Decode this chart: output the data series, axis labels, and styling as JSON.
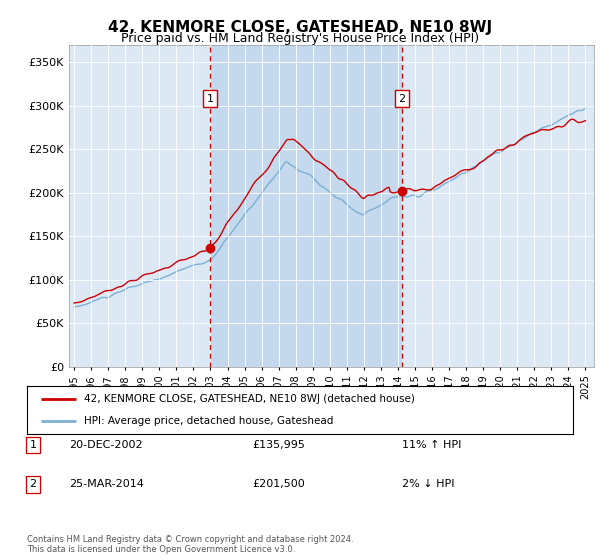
{
  "title": "42, KENMORE CLOSE, GATESHEAD, NE10 8WJ",
  "subtitle": "Price paid vs. HM Land Registry's House Price Index (HPI)",
  "bg_color": "#dce9f5",
  "highlight_color": "#c5d9ee",
  "ylabel_ticks": [
    "£0",
    "£50K",
    "£100K",
    "£150K",
    "£200K",
    "£250K",
    "£300K",
    "£350K"
  ],
  "ytick_values": [
    0,
    50000,
    100000,
    150000,
    200000,
    250000,
    300000,
    350000
  ],
  "ylim": [
    0,
    370000
  ],
  "xlim_start": 1994.7,
  "xlim_end": 2025.5,
  "sale1_x": 2002.97,
  "sale1_y": 135995,
  "sale1_label": "1",
  "sale1_date": "20-DEC-2002",
  "sale1_price": "£135,995",
  "sale1_hpi": "11% ↑ HPI",
  "sale2_x": 2014.23,
  "sale2_y": 201500,
  "sale2_label": "2",
  "sale2_date": "25-MAR-2014",
  "sale2_price": "£201,500",
  "sale2_hpi": "2% ↓ HPI",
  "legend_line1": "42, KENMORE CLOSE, GATESHEAD, NE10 8WJ (detached house)",
  "legend_line2": "HPI: Average price, detached house, Gateshead",
  "footer": "Contains HM Land Registry data © Crown copyright and database right 2024.\nThis data is licensed under the Open Government Licence v3.0.",
  "line_color_red": "#cc0000",
  "line_color_blue": "#7bafd4",
  "xtick_years": [
    1995,
    1996,
    1997,
    1998,
    1999,
    2000,
    2001,
    2002,
    2003,
    2004,
    2005,
    2006,
    2007,
    2008,
    2009,
    2010,
    2011,
    2012,
    2013,
    2014,
    2015,
    2016,
    2017,
    2018,
    2019,
    2020,
    2021,
    2022,
    2023,
    2024,
    2025
  ]
}
